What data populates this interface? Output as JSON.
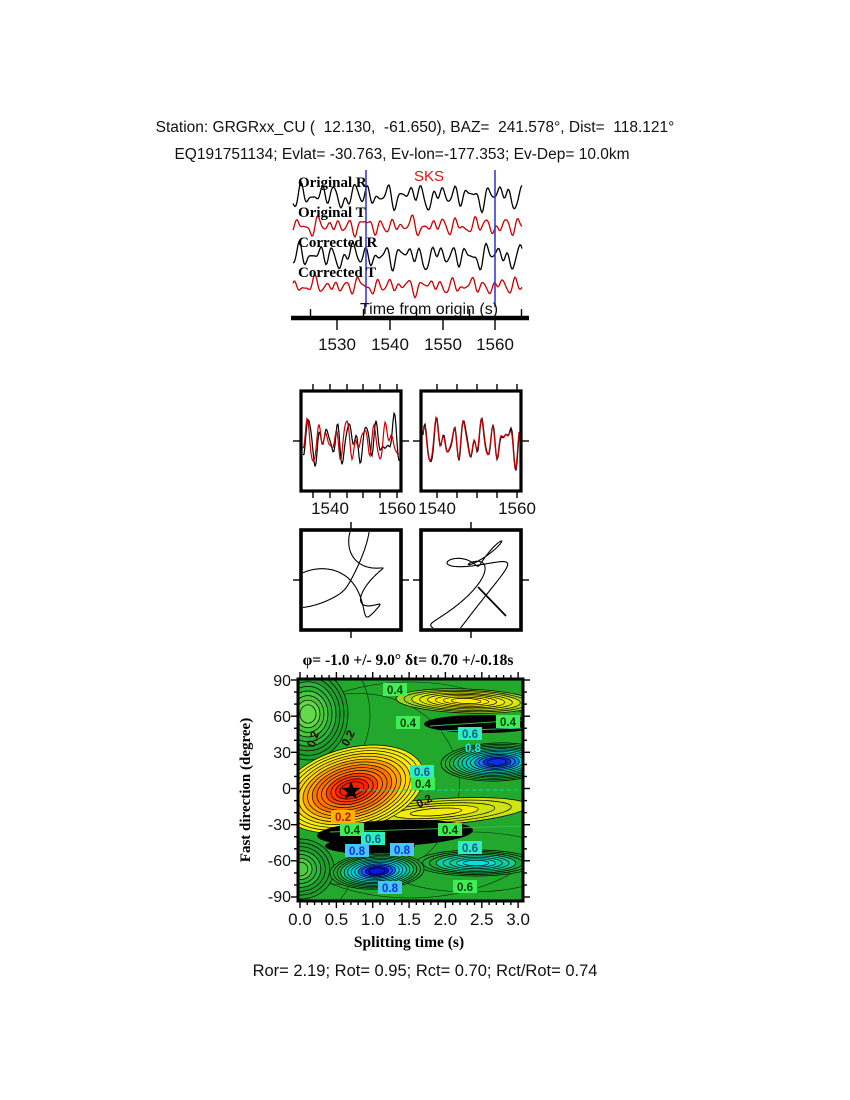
{
  "header": {
    "line1": "Station: GRGRxx_CU (  12.130,  -61.650), BAZ=  241.578°, Dist=  118.121°",
    "line2": "EQ191751134; Evlat= -30.763, Ev-lon=-177.353; Ev-Dep= 10.0km"
  },
  "station_info": {
    "station": "GRGRxx_CU",
    "lat": 12.13,
    "lon": -61.65,
    "baz_deg": 241.578,
    "dist_deg": 118.121,
    "event": "EQ191751134",
    "ev_lat": -30.763,
    "ev_lon": -177.353,
    "ev_dep_km": 10.0
  },
  "waveforms": {
    "phase_label": "SKS",
    "trace_labels": [
      "Original R",
      "Original T",
      "Corrected R",
      "Corrected T"
    ],
    "trace_colors": [
      "#000000",
      "#cc0000",
      "#000000",
      "#cc0000"
    ],
    "window_line_color": "#3b3bd0",
    "axis_title": "Time from origin (s)",
    "tick_labels": [
      "1530",
      "1540",
      "1550",
      "1560"
    ]
  },
  "zoom_panels": {
    "left": {
      "tick_labels": [
        "1540",
        "1560"
      ]
    },
    "right": {
      "tick_labels": [
        "1540",
        "1560"
      ]
    }
  },
  "contour": {
    "title": "φ= -1.0 +/- 9.0° δt= 0.70 +/-0.18s",
    "ylabel": "Fast direction (degree)",
    "xlabel": "Splitting time (s)",
    "ytick_labels": [
      "90",
      "60",
      "30",
      "0",
      "-30",
      "-60",
      "-90"
    ],
    "xtick_labels": [
      "0.0",
      "0.5",
      "1.0",
      "1.5",
      "2.0",
      "2.5",
      "3.0"
    ],
    "contour_labels": [
      "0.4",
      "0.4",
      "0.4",
      "0.6",
      "0.8",
      "0.2",
      "0.2",
      "0.6",
      "0.4",
      "0.2",
      "0.2",
      "0.4",
      "0.4",
      "0.6",
      "0.8",
      "0.8",
      "0.8",
      "0.6",
      "0.6"
    ]
  },
  "results": {
    "line": "Ror= 2.19; Rot= 0.95; Rct= 0.70; Rct/Rot= 0.74"
  },
  "chart_data": [
    {
      "type": "line",
      "panel": "waveforms",
      "xlabel": "Time from origin (s)",
      "xlim": [
        1523,
        1565
      ],
      "xticks": [
        1530,
        1540,
        1550,
        1560
      ],
      "series": [
        {
          "name": "Original R",
          "color": "#000000"
        },
        {
          "name": "Original T",
          "color": "#cc0000"
        },
        {
          "name": "Corrected R",
          "color": "#000000"
        },
        {
          "name": "Corrected T",
          "color": "#cc0000"
        }
      ],
      "phase_arrival_label": "SKS",
      "analysis_window_s": [
        1535.5,
        1560
      ]
    },
    {
      "type": "line",
      "panel": "window-comparison",
      "panels": [
        {
          "xticks": [
            1540,
            1560
          ],
          "series": [
            "R (black)",
            "T (red)"
          ]
        },
        {
          "xticks": [
            1540,
            1560
          ],
          "series": [
            "corrected R (black)",
            "corrected T (red)"
          ]
        }
      ]
    },
    {
      "type": "scatter",
      "panel": "particle-motion",
      "panels": [
        "original: elliptical motion",
        "corrected: linearized NE-SW motion"
      ]
    },
    {
      "type": "heatmap",
      "panel": "error-surface",
      "title": "φ= -1.0 +/- 9.0° δt= 0.70 +/-0.18s",
      "xlabel": "Splitting time (s)",
      "ylabel": "Fast direction (degree)",
      "xlim": [
        0,
        3
      ],
      "ylim": [
        -90,
        90
      ],
      "xticks": [
        0.0,
        0.5,
        1.0,
        1.5,
        2.0,
        2.5,
        3.0
      ],
      "yticks": [
        90,
        60,
        30,
        0,
        -30,
        -60,
        -90
      ],
      "contour_levels": [
        0.2,
        0.4,
        0.6,
        0.8
      ],
      "best_fit": {
        "fast_direction_deg": -1.0,
        "fast_direction_err_deg": 9.0,
        "split_time_s": 0.7,
        "split_time_err_s": 0.18,
        "star_marker_xy": [
          0.7,
          -1.0
        ]
      },
      "local_minima_blue_xy": [
        [
          1.1,
          -65
        ],
        [
          2.8,
          25
        ]
      ],
      "colormap": "rainbow; red peak at best-fit star, blue troughs, black contour lines"
    },
    {
      "type": "table",
      "panel": "quality-metrics",
      "values": {
        "Ror": 2.19,
        "Rot": 0.95,
        "Rct": 0.7,
        "Rct_over_Rot": 0.74
      }
    }
  ]
}
